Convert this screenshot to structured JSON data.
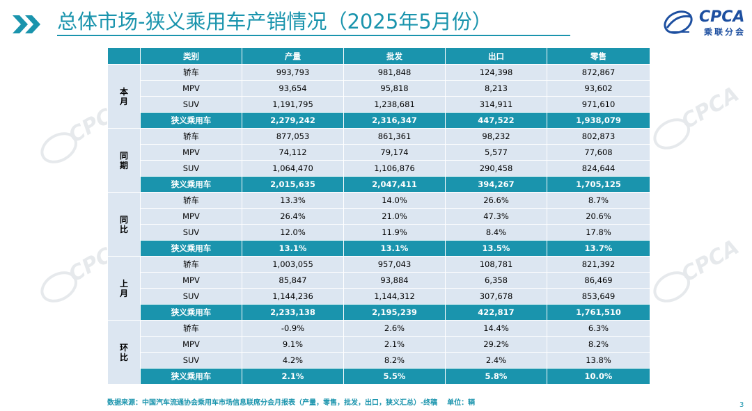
{
  "header": {
    "title": "总体市场-狭义乘用车产销情况（2025年5月份）",
    "logo_en": "CPCA",
    "logo_cn": "乘联分会",
    "accent_color": "#1a94ad"
  },
  "table": {
    "columns": [
      "类别",
      "产量",
      "批发",
      "出口",
      "零售"
    ],
    "groups": [
      {
        "label": "本月",
        "rows": [
          {
            "cat": "轿车",
            "v": [
              "993,793",
              "981,848",
              "124,398",
              "872,867"
            ]
          },
          {
            "cat": "MPV",
            "v": [
              "93,654",
              "95,818",
              "8,213",
              "93,602"
            ]
          },
          {
            "cat": "SUV",
            "v": [
              "1,191,795",
              "1,238,681",
              "314,911",
              "971,610"
            ]
          }
        ],
        "total": {
          "cat": "狭义乘用车",
          "v": [
            "2,279,242",
            "2,316,347",
            "447,522",
            "1,938,079"
          ]
        }
      },
      {
        "label": "同期",
        "rows": [
          {
            "cat": "轿车",
            "v": [
              "877,053",
              "861,361",
              "98,232",
              "802,873"
            ]
          },
          {
            "cat": "MPV",
            "v": [
              "74,112",
              "79,174",
              "5,577",
              "77,608"
            ]
          },
          {
            "cat": "SUV",
            "v": [
              "1,064,470",
              "1,106,876",
              "290,458",
              "824,644"
            ]
          }
        ],
        "total": {
          "cat": "狭义乘用车",
          "v": [
            "2,015,635",
            "2,047,411",
            "394,267",
            "1,705,125"
          ]
        }
      },
      {
        "label": "同比",
        "rows": [
          {
            "cat": "轿车",
            "v": [
              "13.3%",
              "14.0%",
              "26.6%",
              "8.7%"
            ]
          },
          {
            "cat": "MPV",
            "v": [
              "26.4%",
              "21.0%",
              "47.3%",
              "20.6%"
            ]
          },
          {
            "cat": "SUV",
            "v": [
              "12.0%",
              "11.9%",
              "8.4%",
              "17.8%"
            ]
          }
        ],
        "total": {
          "cat": "狭义乘用车",
          "v": [
            "13.1%",
            "13.1%",
            "13.5%",
            "13.7%"
          ]
        }
      },
      {
        "label": "上月",
        "rows": [
          {
            "cat": "轿车",
            "v": [
              "1,003,055",
              "957,043",
              "108,781",
              "821,392"
            ]
          },
          {
            "cat": "MPV",
            "v": [
              "85,847",
              "93,884",
              "6,358",
              "86,469"
            ]
          },
          {
            "cat": "SUV",
            "v": [
              "1,144,236",
              "1,144,312",
              "307,678",
              "853,649"
            ]
          }
        ],
        "total": {
          "cat": "狭义乘用车",
          "v": [
            "2,233,138",
            "2,195,239",
            "422,817",
            "1,761,510"
          ]
        }
      },
      {
        "label": "环比",
        "rows": [
          {
            "cat": "轿车",
            "v": [
              "-0.9%",
              "2.6%",
              "14.4%",
              "6.3%"
            ]
          },
          {
            "cat": "MPV",
            "v": [
              "9.1%",
              "2.1%",
              "29.2%",
              "8.2%"
            ]
          },
          {
            "cat": "SUV",
            "v": [
              "4.2%",
              "8.2%",
              "2.4%",
              "13.8%"
            ]
          }
        ],
        "total": {
          "cat": "狭义乘用车",
          "v": [
            "2.1%",
            "5.5%",
            "5.8%",
            "10.0%"
          ]
        }
      }
    ]
  },
  "footer": {
    "source": "数据来源：中国汽车流通协会乘用车市场信息联席分会月报表（产量，零售，批发，出口，狭义汇总）-终稿",
    "unit": "单位：辆",
    "page": "3"
  }
}
